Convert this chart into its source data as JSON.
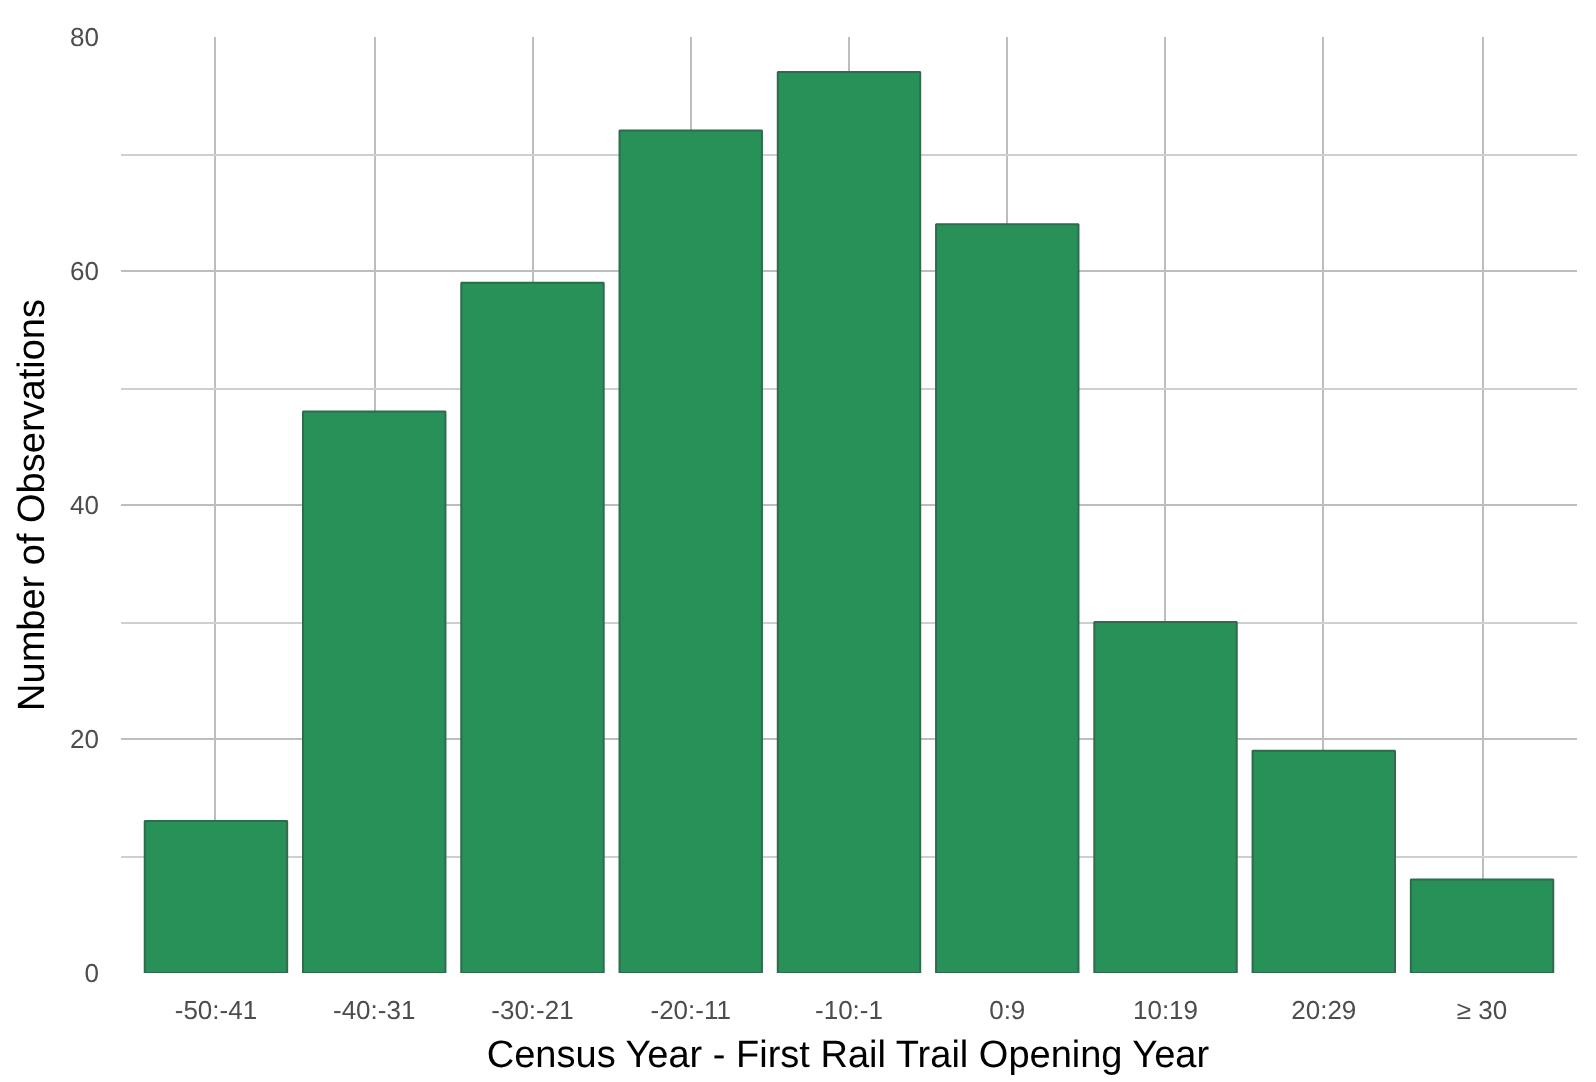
{
  "chart_data": {
    "type": "bar",
    "xlabel": "Census Year - First Rail Trail Opening Year",
    "ylabel": "Number of Observations",
    "categories": [
      "-50:-41",
      "-40:-31",
      "-30:-21",
      "-20:-11",
      "-10:-1",
      "0:9",
      "10:19",
      "20:29",
      "≥ 30"
    ],
    "values": [
      13,
      48,
      59,
      72,
      77,
      64,
      30,
      19,
      8
    ],
    "color": "#279158",
    "ylim": [
      0,
      80
    ],
    "yticks": [
      0,
      20,
      40,
      60,
      80
    ],
    "grid": true
  }
}
